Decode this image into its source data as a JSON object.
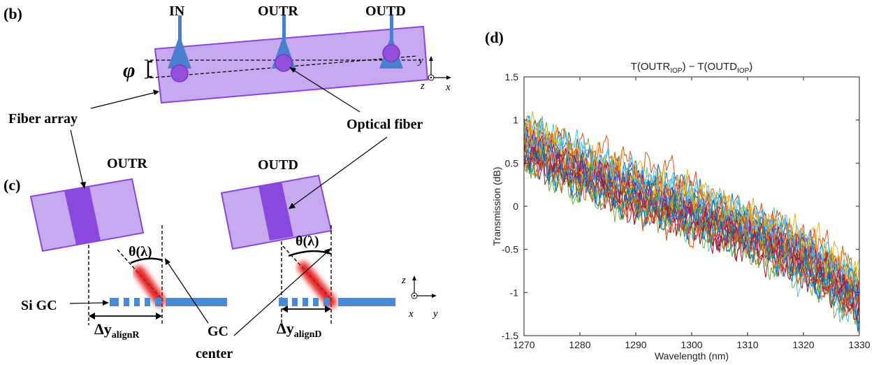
{
  "panel_b": {
    "label": "(b)",
    "port_in": "IN",
    "port_outr": "OUTR",
    "port_outd": "OUTD",
    "angle_symbol": "φ",
    "axis_y": "y",
    "axis_z": "z",
    "axis_x": "x",
    "fiber_array_label": "Fiber array",
    "optical_fiber_label": "Optical fiber"
  },
  "panel_c": {
    "label": "(c)",
    "outr_label": "OUTR",
    "outd_label": "OUTD",
    "theta_left": "θ(λ)",
    "theta_right": "θ(λ)",
    "si_gc_label": "Si GC",
    "delta_r_main": "Δy",
    "delta_r_sub": "alignR",
    "delta_d_main": "Δy",
    "delta_d_sub": "alignD",
    "gc_center_line1": "GC",
    "gc_center_line2": "center",
    "axis_z": "z",
    "axis_x": "x",
    "axis_y": "y"
  },
  "panel_d": {
    "label": "(d)",
    "title_main_1": "T(OUTR",
    "title_sub_1": "IOP",
    "title_main_2": ") − T(OUTD",
    "title_sub_2": "IOP",
    "title_main_3": ")"
  },
  "chart_data": {
    "type": "line",
    "title": "T(OUTR_IOP) − T(OUTD_IOP)",
    "xlabel": "Wavelength (nm)",
    "ylabel": "Transmission (dB)",
    "xlim": [
      1270,
      1330
    ],
    "ylim": [
      -1.5,
      1.5
    ],
    "xticks": [
      1270,
      1280,
      1290,
      1300,
      1310,
      1320,
      1330
    ],
    "yticks": [
      -1.5,
      -1,
      -0.5,
      0,
      0.5,
      1,
      1.5
    ],
    "grid": false,
    "n_series": 30,
    "trend": {
      "x": [
        1270,
        1280,
        1290,
        1300,
        1310,
        1320,
        1330
      ],
      "y": [
        0.75,
        0.45,
        0.2,
        0.0,
        -0.25,
        -0.55,
        -1.0
      ]
    },
    "series_colors": [
      "#0072BD",
      "#D95319",
      "#EDB120",
      "#7E2F8E",
      "#77AC30",
      "#4DBEEE",
      "#A2142F"
    ]
  }
}
